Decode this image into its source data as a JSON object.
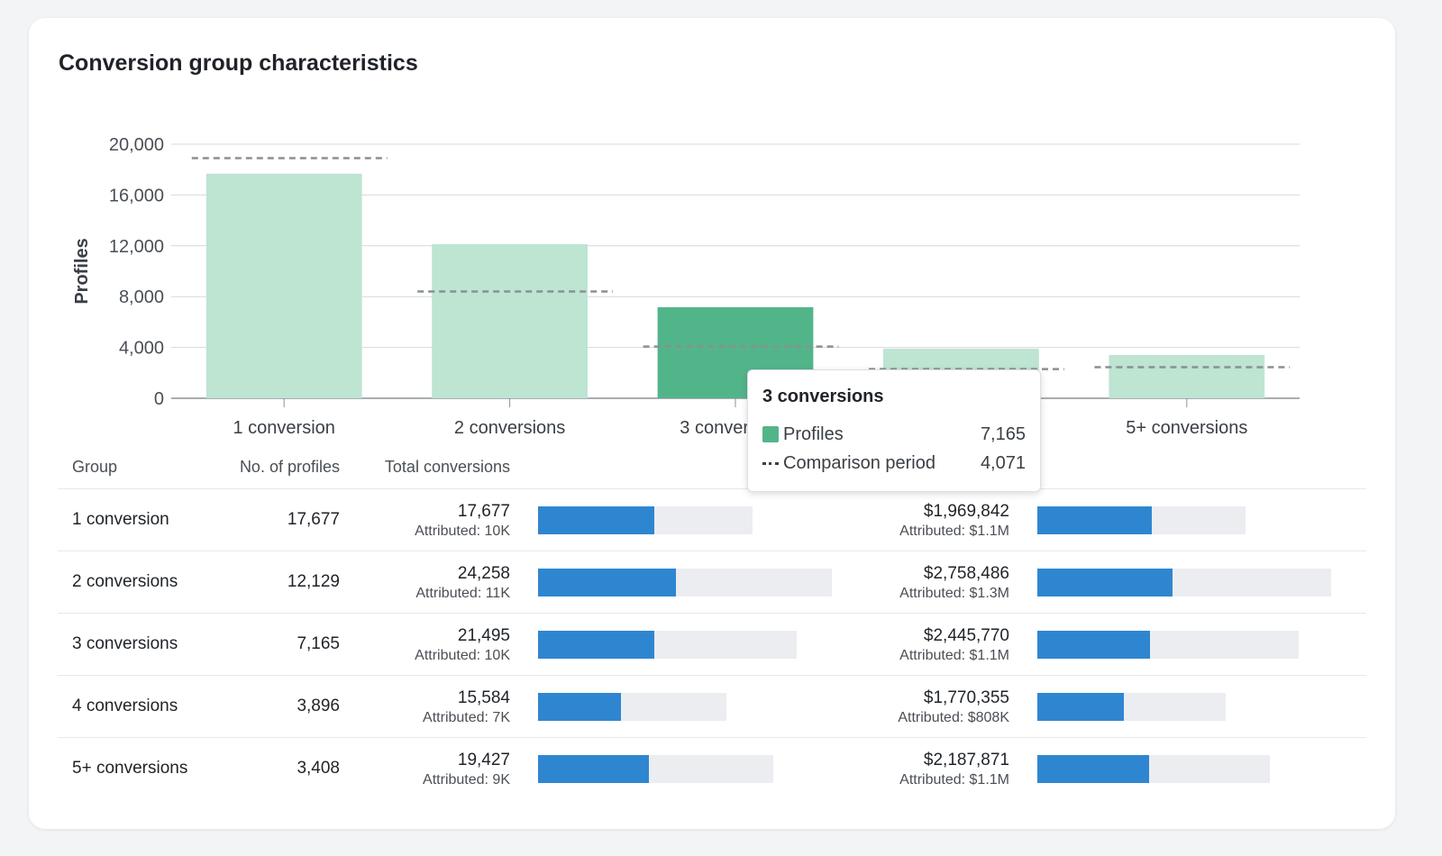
{
  "card": {
    "title": "Conversion group characteristics"
  },
  "colors": {
    "bar_light": "#bee4d2",
    "bar_highlight": "#52b58a",
    "comparison_line": "#8a8f95",
    "progress_fill": "#2f86d0",
    "progress_track": "#ebedf0"
  },
  "chart_data": {
    "type": "bar",
    "ylabel": "Profiles",
    "xlabel": "",
    "ylim": [
      0,
      20000
    ],
    "yticks": [
      "0",
      "4,000",
      "8,000",
      "12,000",
      "16,000",
      "20,000"
    ],
    "grid": true,
    "categories": [
      "1 conversion",
      "2 conversions",
      "3 conversions",
      "4 conversions",
      "5+ conversions"
    ],
    "series": [
      {
        "name": "Profiles",
        "values": [
          17677,
          12129,
          7165,
          3896,
          3408
        ]
      },
      {
        "name": "Comparison period",
        "style": "dashed",
        "values": [
          18900,
          8400,
          4071,
          2300,
          2450
        ]
      }
    ],
    "highlighted_index": 2
  },
  "tooltip": {
    "title": "3 conversions",
    "rows": [
      {
        "label": "Profiles",
        "value": "7,165"
      },
      {
        "label": "Comparison period",
        "value": "4,071"
      }
    ]
  },
  "table": {
    "headers": {
      "group": "Group",
      "profiles": "No. of profiles",
      "conversions": "Total conversions"
    },
    "rows": [
      {
        "group": "1 conversion",
        "profiles": "17,677",
        "conversions": "17,677",
        "conversions_attr": "Attributed: 10K",
        "conv_total_frac": 0.73,
        "conv_fill_frac": 0.54,
        "revenue": "$1,969,842",
        "revenue_attr": "Attributed: $1.1M",
        "rev_total_frac": 0.71,
        "rev_fill_frac": 0.55
      },
      {
        "group": "2 conversions",
        "profiles": "12,129",
        "conversions": "24,258",
        "conversions_attr": "Attributed: 11K",
        "conv_total_frac": 1.0,
        "conv_fill_frac": 0.47,
        "revenue": "$2,758,486",
        "revenue_attr": "Attributed: $1.3M",
        "rev_total_frac": 1.0,
        "rev_fill_frac": 0.46
      },
      {
        "group": "3 conversions",
        "profiles": "7,165",
        "conversions": "21,495",
        "conversions_attr": "Attributed: 10K",
        "conv_total_frac": 0.88,
        "conv_fill_frac": 0.45,
        "revenue": "$2,445,770",
        "revenue_attr": "Attributed: $1.1M",
        "rev_total_frac": 0.89,
        "rev_fill_frac": 0.43
      },
      {
        "group": "4 conversions",
        "profiles": "3,896",
        "conversions": "15,584",
        "conversions_attr": "Attributed: 7K",
        "conv_total_frac": 0.64,
        "conv_fill_frac": 0.44,
        "revenue": "$1,770,355",
        "revenue_attr": "Attributed: $808K",
        "rev_total_frac": 0.64,
        "rev_fill_frac": 0.46
      },
      {
        "group": "5+ conversions",
        "profiles": "3,408",
        "conversions": "19,427",
        "conversions_attr": "Attributed: 9K",
        "conv_total_frac": 0.8,
        "conv_fill_frac": 0.47,
        "revenue": "$2,187,871",
        "revenue_attr": "Attributed: $1.1M",
        "rev_total_frac": 0.79,
        "rev_fill_frac": 0.48
      }
    ]
  }
}
